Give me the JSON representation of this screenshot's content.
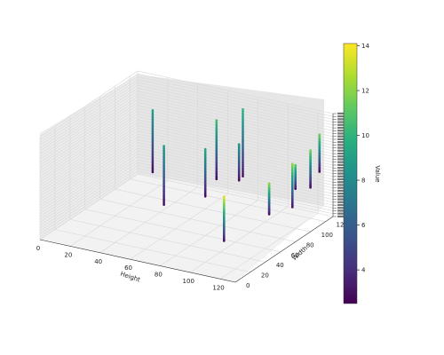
{
  "chart_data": {
    "type": "scatter",
    "subtype": "3d-scatter-columns",
    "title": "",
    "xlabel": "Height",
    "ylabel": "Width",
    "zlabel": "",
    "xlim": [
      0,
      130
    ],
    "ylim": [
      0,
      130
    ],
    "x_ticks": [
      "0",
      "20",
      "40",
      "60",
      "80",
      "100",
      "120"
    ],
    "y_ticks": [
      "0",
      "20",
      "40",
      "60",
      "80",
      "100",
      "120"
    ],
    "z_ticks_note": "dense unreadable tick labels on vertical axis",
    "colormap": "viridis",
    "colorbar": {
      "label": "Value",
      "min": 2.5,
      "max": 14.1,
      "ticks": [
        "4",
        "6",
        "8",
        "10",
        "12",
        "14"
      ]
    },
    "grid": true,
    "columns": [
      {
        "x": 20,
        "y": 110,
        "z_bottom": 0.18,
        "z_top": 0.78,
        "v_top": 9.0
      },
      {
        "x": 40,
        "y": 85,
        "z_bottom": 0.05,
        "z_top": 0.62,
        "v_top": 8.8
      },
      {
        "x": 55,
        "y": 125,
        "z_bottom": 0.15,
        "z_top": 0.72,
        "v_top": 10.5
      },
      {
        "x": 70,
        "y": 130,
        "z_bottom": 0.2,
        "z_top": 0.85,
        "v_top": 10.0
      },
      {
        "x": 60,
        "y": 100,
        "z_bottom": 0.12,
        "z_top": 0.58,
        "v_top": 9.5
      },
      {
        "x": 75,
        "y": 115,
        "z_bottom": 0.25,
        "z_top": 0.6,
        "v_top": 8.5
      },
      {
        "x": 110,
        "y": 85,
        "z_bottom": 0.18,
        "z_top": 0.48,
        "v_top": 12.0
      },
      {
        "x": 95,
        "y": 55,
        "z_bottom": 0.02,
        "z_top": 0.45,
        "v_top": 13.5
      },
      {
        "x": 120,
        "y": 120,
        "z_bottom": 0.3,
        "z_top": 0.66,
        "v_top": 11.5
      },
      {
        "x": 118,
        "y": 100,
        "z_bottom": 0.2,
        "z_top": 0.62,
        "v_top": 12.0
      },
      {
        "x": 115,
        "y": 110,
        "z_bottom": 0.32,
        "z_top": 0.55,
        "v_top": 11.0
      },
      {
        "x": 122,
        "y": 128,
        "z_bottom": 0.42,
        "z_top": 0.78,
        "v_top": 11.5
      }
    ]
  }
}
